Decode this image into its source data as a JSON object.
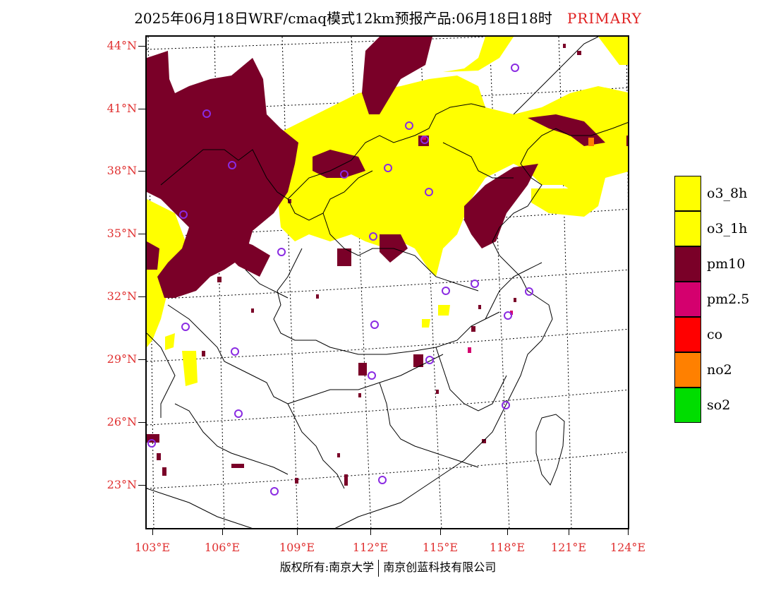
{
  "title": {
    "main": "2025年06月18日WRF/cmaq模式12km预报产品:06月18日18时",
    "mode": "PRIMARY",
    "mode_color": "#e02020"
  },
  "lat_labels": [
    "44°N",
    "41°N",
    "38°N",
    "35°N",
    "32°N",
    "29°N",
    "26°N",
    "23°N"
  ],
  "lon_labels": [
    "103°E",
    "106°E",
    "109°E",
    "112°E",
    "115°E",
    "118°E",
    "121°E",
    "124°E"
  ],
  "legend": [
    {
      "label": "o3_8h",
      "color": "#ffff00"
    },
    {
      "label": "o3_1h",
      "color": "#ffff00"
    },
    {
      "label": "pm10",
      "color": "#7a0028"
    },
    {
      "label": "pm2.5",
      "color": "#d4006e"
    },
    {
      "label": "co",
      "color": "#ff0000"
    },
    {
      "label": "no2",
      "color": "#ff8000"
    },
    {
      "label": "so2",
      "color": "#00dd00"
    }
  ],
  "copyright": {
    "left": "版权所有:南京大学",
    "right": "南京创蓝科技有限公司"
  },
  "colors": {
    "label_red": "#e03030",
    "station_marker": "#8a2be2",
    "boundary": "#000000"
  },
  "map": {
    "layers": [
      "o3",
      "pm10",
      "pm2.5",
      "no2"
    ],
    "station_marker_icon": "circle-icon"
  }
}
